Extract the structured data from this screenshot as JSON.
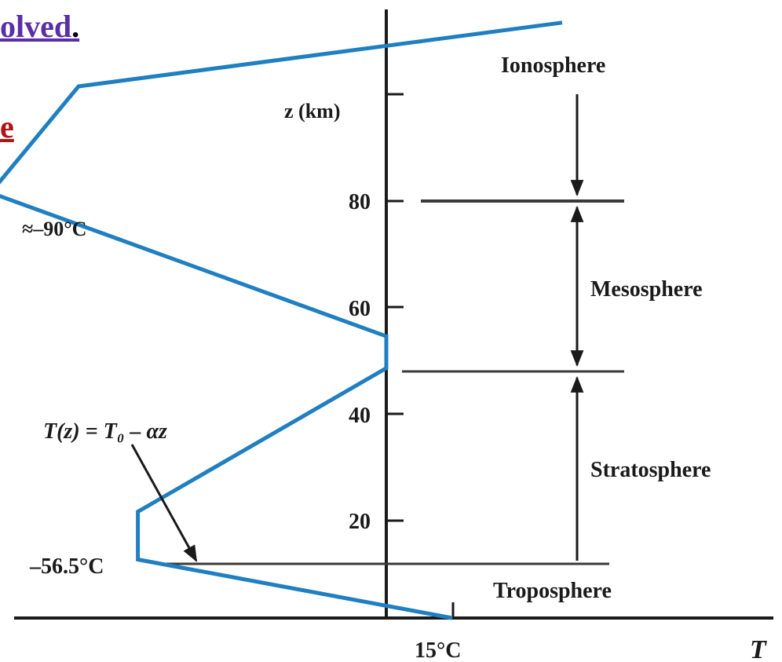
{
  "header_fragments": {
    "line1": "olved",
    "line1_punct": ".",
    "line2": "e",
    "line1_color": "#5a2ea6",
    "line2_color": "#b01414"
  },
  "axes": {
    "z_label": "z (km)",
    "t_label": "T",
    "z_ticks": [
      "20",
      "40",
      "60",
      "80"
    ]
  },
  "profile": {
    "color": "#1f7fc1",
    "points_T_z": [
      [
        15,
        0
      ],
      [
        -56.5,
        11
      ],
      [
        -56.5,
        20
      ],
      [
        0,
        47
      ],
      [
        0,
        53
      ],
      [
        -90,
        80
      ],
      [
        -70,
        100
      ],
      [
        40,
        112
      ]
    ]
  },
  "annotations": {
    "sea_level_temp": "15°C",
    "tropopause_temp": "–56.5°C",
    "mesopause_temp": "≈–90°C",
    "lapse_formula": "T(z) = T₀ – αz"
  },
  "layers": {
    "ionosphere": "Ionosphere",
    "mesosphere": "Mesosphere",
    "stratosphere": "Stratosphere",
    "troposphere": "Troposphere"
  }
}
